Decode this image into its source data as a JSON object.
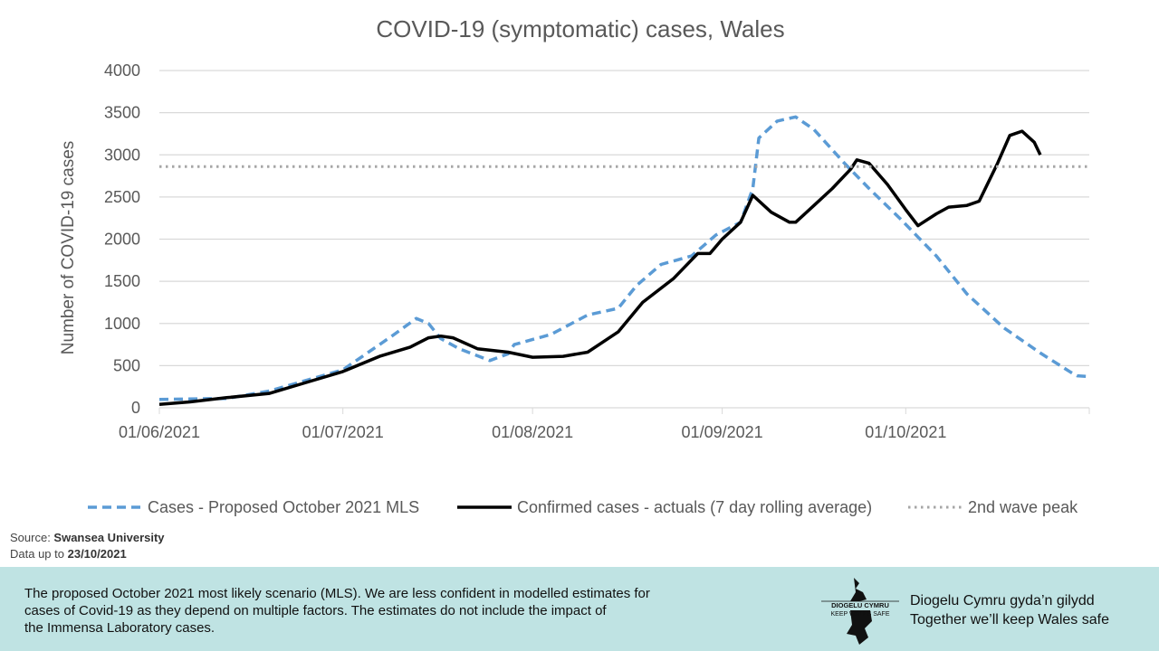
{
  "chart_data": {
    "type": "line",
    "title": "COVID-19 (symptomatic) cases, Wales",
    "xlabel": "",
    "ylabel": "Number of COVID-19 cases",
    "xlim": [
      "2021-06-01",
      "2021-10-31"
    ],
    "ylim": [
      0,
      4000
    ],
    "yticks": [
      0,
      500,
      1000,
      1500,
      2000,
      2500,
      3000,
      3500,
      4000
    ],
    "xticks": [
      {
        "date": "2021-06-01",
        "label": "01/06/2021"
      },
      {
        "date": "2021-07-01",
        "label": "01/07/2021"
      },
      {
        "date": "2021-08-01",
        "label": "01/08/2021"
      },
      {
        "date": "2021-09-01",
        "label": "01/09/2021"
      },
      {
        "date": "2021-10-01",
        "label": "01/10/2021"
      }
    ],
    "grid": "horizontal",
    "legend": "bottom",
    "series": [
      {
        "name": "Cases - Proposed October 2021 MLS",
        "color": "#5b9bd5",
        "style": "dashed",
        "x": [
          "2021-06-01",
          "2021-06-12",
          "2021-06-19",
          "2021-07-01",
          "2021-07-09",
          "2021-07-13",
          "2021-07-15",
          "2021-07-17",
          "2021-07-20",
          "2021-07-25",
          "2021-07-28",
          "2021-07-29",
          "2021-08-04",
          "2021-08-10",
          "2021-08-15",
          "2021-08-18",
          "2021-08-22",
          "2021-08-27",
          "2021-08-31",
          "2021-09-04",
          "2021-09-06",
          "2021-09-07",
          "2021-09-10",
          "2021-09-13",
          "2021-09-16",
          "2021-09-21",
          "2021-09-25",
          "2021-09-30",
          "2021-10-06",
          "2021-10-11",
          "2021-10-17",
          "2021-10-23",
          "2021-10-28",
          "2021-10-29",
          "2021-10-31"
        ],
        "y": [
          100,
          110,
          200,
          450,
          850,
          1060,
          1000,
          820,
          700,
          560,
          640,
          750,
          870,
          1100,
          1180,
          1450,
          1700,
          1800,
          2050,
          2200,
          2600,
          3200,
          3400,
          3450,
          3300,
          2900,
          2600,
          2250,
          1800,
          1350,
          950,
          650,
          420,
          380,
          370
        ]
      },
      {
        "name": "Confirmed cases - actuals (7 day rolling average)",
        "color": "#000000",
        "style": "solid",
        "x": [
          "2021-06-01",
          "2021-06-06",
          "2021-06-12",
          "2021-06-19",
          "2021-06-25",
          "2021-07-01",
          "2021-07-07",
          "2021-07-12",
          "2021-07-15",
          "2021-07-17",
          "2021-07-19",
          "2021-07-23",
          "2021-07-28",
          "2021-08-01",
          "2021-08-06",
          "2021-08-10",
          "2021-08-15",
          "2021-08-19",
          "2021-08-24",
          "2021-08-28",
          "2021-08-30",
          "2021-09-01",
          "2021-09-04",
          "2021-09-06",
          "2021-09-09",
          "2021-09-12",
          "2021-09-13",
          "2021-09-16",
          "2021-09-19",
          "2021-09-22",
          "2021-09-23",
          "2021-09-25",
          "2021-09-28",
          "2021-10-01",
          "2021-10-03",
          "2021-10-06",
          "2021-10-08",
          "2021-10-11",
          "2021-10-13",
          "2021-10-16",
          "2021-10-18",
          "2021-10-20",
          "2021-10-22",
          "2021-10-23"
        ],
        "y": [
          40,
          70,
          120,
          170,
          300,
          430,
          610,
          720,
          830,
          850,
          830,
          700,
          660,
          600,
          610,
          660,
          900,
          1250,
          1530,
          1830,
          1830,
          2000,
          2200,
          2520,
          2320,
          2200,
          2200,
          2400,
          2600,
          2830,
          2940,
          2900,
          2650,
          2350,
          2160,
          2300,
          2380,
          2400,
          2450,
          2900,
          3230,
          3280,
          3150,
          3000
        ]
      },
      {
        "name": "2nd wave peak",
        "color": "#a6a6a6",
        "style": "dotted",
        "constant": 2860
      }
    ]
  },
  "source": {
    "label": "Source: ",
    "value": "Swansea University"
  },
  "data_up_to": {
    "label": "Data up to ",
    "value": "23/10/2021"
  },
  "footer": {
    "note_lines": [
      "The proposed October 2021 most likely scenario (MLS). We are less confident in modelled estimates for",
      "cases of Covid-19 as they depend on multiple factors. The estimates do not include the impact of",
      "the Immensa Laboratory cases."
    ],
    "logo_text": [
      "DIOGELU CYMRU",
      "KEEP WALES SAFE"
    ],
    "slogan_welsh": "Diogelu Cymru gyda’n gilydd",
    "slogan_english": "Together we’ll keep Wales safe"
  }
}
